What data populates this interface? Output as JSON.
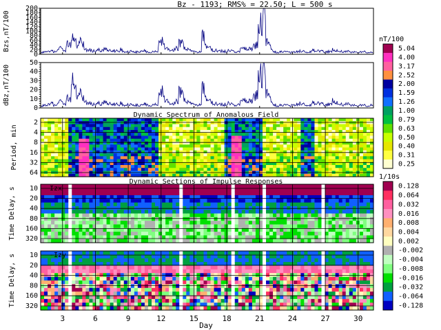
{
  "header": {
    "text": "Bz - 1193;  RMS% = 22.50;  L = 500 s"
  },
  "colors": {
    "line": "#000080",
    "axis": "#000000",
    "bg": "#ffffff"
  },
  "chart_data": [
    {
      "id": "bzs",
      "type": "line",
      "ylabel": "Bzs,nT/100",
      "ylim": [
        0,
        200
      ],
      "yticks": [
        "0",
        "20",
        "40",
        "60",
        "80",
        "100",
        "120",
        "140",
        "160",
        "180",
        "200"
      ],
      "xlim": [
        1,
        31
      ],
      "series": [
        {
          "values": [
            8,
            10,
            9,
            12,
            14,
            11,
            16,
            30,
            22,
            18,
            50,
            45,
            70,
            60,
            40,
            55,
            40,
            25,
            20,
            18,
            15,
            14,
            18,
            16,
            20,
            22,
            19,
            17,
            15,
            14,
            13,
            20,
            12,
            10,
            12,
            14,
            11,
            10,
            9,
            12,
            15,
            12,
            10,
            11,
            12,
            14,
            50,
            55,
            35,
            25,
            18,
            16,
            20,
            25,
            55,
            45,
            30,
            20,
            16,
            12,
            10,
            9,
            12,
            80,
            40,
            30,
            25,
            20,
            18,
            15,
            14,
            12,
            13,
            15,
            14,
            12,
            10,
            12,
            20,
            30,
            28,
            22,
            25,
            35,
            45,
            95,
            140,
            210,
            60,
            40,
            20,
            10,
            8,
            10,
            12,
            14,
            10,
            8,
            9,
            10,
            12,
            14,
            12,
            10,
            9,
            11,
            18,
            12,
            14,
            15,
            12,
            10,
            12,
            14,
            20,
            16,
            13,
            12,
            10,
            11,
            12,
            9,
            10,
            8,
            9,
            10,
            11,
            8,
            7,
            8
          ]
        }
      ]
    },
    {
      "id": "dbz",
      "type": "line",
      "ylabel": "dBz,nT/100",
      "ylim": [
        0,
        50
      ],
      "yticks": [
        "0",
        "10",
        "20",
        "30",
        "40",
        "50"
      ],
      "xlim": [
        1,
        31
      ],
      "series": [
        {
          "values": [
            2,
            3,
            2,
            4,
            5,
            3,
            4,
            8,
            6,
            5,
            12,
            10,
            30,
            22,
            14,
            16,
            10,
            8,
            6,
            5,
            4,
            4,
            5,
            4,
            6,
            6,
            5,
            5,
            4,
            4,
            3,
            5,
            3,
            3,
            4,
            4,
            3,
            3,
            2,
            3,
            4,
            4,
            3,
            3,
            4,
            4,
            14,
            18,
            10,
            8,
            5,
            4,
            5,
            7,
            20,
            14,
            10,
            6,
            5,
            4,
            3,
            3,
            4,
            22,
            12,
            8,
            7,
            6,
            5,
            4,
            4,
            3,
            4,
            5,
            4,
            3,
            3,
            4,
            6,
            10,
            9,
            7,
            8,
            12,
            16,
            30,
            38,
            44,
            18,
            12,
            6,
            3,
            2,
            3,
            3,
            4,
            3,
            2,
            3,
            3,
            4,
            5,
            4,
            3,
            3,
            3,
            6,
            4,
            5,
            5,
            4,
            3,
            4,
            5,
            8,
            6,
            4,
            4,
            3,
            4,
            4,
            3,
            3,
            2,
            3,
            3,
            3,
            2,
            2,
            3
          ]
        }
      ]
    },
    {
      "id": "spectrum",
      "type": "heatmap",
      "title": "Dynamic Spectrum of Anomalous Field",
      "ylabel": "Period, min",
      "yticks": [
        "2",
        "4",
        "8",
        "16",
        "32",
        "64"
      ],
      "unit": "nT/100",
      "scale": [
        "0.25",
        "0.31",
        "0.40",
        "0.50",
        "0.63",
        "0.79",
        "1.00",
        "1.26",
        "1.59",
        "2.00",
        "2.52",
        "3.17",
        "4.00",
        "5.04"
      ],
      "scale_colors": [
        "#ffffd0",
        "#ffff40",
        "#e6e600",
        "#c8ff00",
        "#60e000",
        "#00c040",
        "#00a060",
        "#1070ff",
        "#0030e0",
        "#0000a0",
        "#ff9040",
        "#ff60a0",
        "#ff30c0",
        "#a00050"
      ]
    },
    {
      "id": "izx",
      "type": "heatmap",
      "title": "Dynamic Sections of Impulse Responses",
      "label": "Izx",
      "ylabel": "Time Delay, s",
      "yticks": [
        "10",
        "20",
        "40",
        "80",
        "160",
        "320"
      ],
      "unit": "1/10s",
      "scale": [
        "0.128",
        "0.064",
        "0.032",
        "0.016",
        "0.008",
        "0.004",
        "0.002",
        "-0.002",
        "-0.004",
        "-0.008",
        "-0.016",
        "-0.032",
        "-0.064",
        "-0.128"
      ],
      "scale_colors": [
        "#a00050",
        "#ff3060",
        "#ff60a0",
        "#ff90c0",
        "#ffb070",
        "#ffd8a0",
        "#ffffc0",
        "#b0b0b0",
        "#c0ffc0",
        "#80ff80",
        "#00e000",
        "#00a040",
        "#1060ff",
        "#0000c0"
      ]
    },
    {
      "id": "izy",
      "type": "heatmap",
      "label": "-Izy",
      "ylabel": "Time Delay, s",
      "yticks": [
        "10",
        "20",
        "40",
        "80",
        "160",
        "320"
      ]
    }
  ],
  "xaxis": {
    "label": "Day",
    "ticks": [
      "3",
      "6",
      "9",
      "12",
      "15",
      "18",
      "21",
      "24",
      "27",
      "30"
    ]
  }
}
